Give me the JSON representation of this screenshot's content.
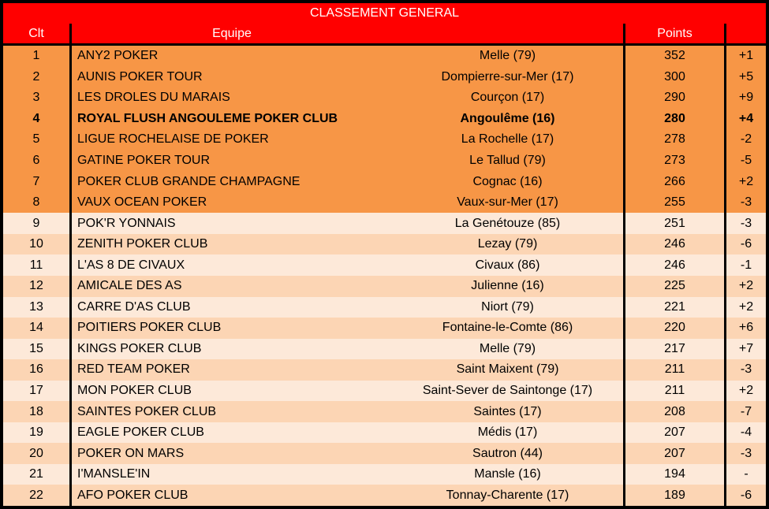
{
  "title": "CLASSEMENT GENERAL",
  "columns": {
    "rank": "Clt",
    "team": "Equipe",
    "points": "Points"
  },
  "colors": {
    "header-bg": "#FF0000",
    "header-text": "#FFFFFF",
    "row-top": "#F79646",
    "row-light": "#FDE9D9",
    "row-mid": "#FCD5B4",
    "border": "#000000",
    "body-text": "#000000"
  },
  "rows": [
    {
      "rank": "1",
      "team": "ANY2 POKER",
      "city": "Melle (79)",
      "points": "352",
      "change": "+1"
    },
    {
      "rank": "2",
      "team": "AUNIS POKER TOUR",
      "city": "Dompierre-sur-Mer (17)",
      "points": "300",
      "change": "+5"
    },
    {
      "rank": "3",
      "team": "LES DROLES DU MARAIS",
      "city": "Courçon (17)",
      "points": "290",
      "change": "+9"
    },
    {
      "rank": "4",
      "team": "ROYAL FLUSH ANGOULEME POKER CLUB",
      "city": "Angoulême (16)",
      "points": "280",
      "change": "+4",
      "highlight": true
    },
    {
      "rank": "5",
      "team": "LIGUE ROCHELAISE DE POKER",
      "city": "La Rochelle (17)",
      "points": "278",
      "change": "-2"
    },
    {
      "rank": "6",
      "team": "GATINE POKER TOUR",
      "city": "Le Tallud (79)",
      "points": "273",
      "change": "-5"
    },
    {
      "rank": "7",
      "team": "POKER CLUB GRANDE CHAMPAGNE",
      "city": "Cognac (16)",
      "points": "266",
      "change": "+2"
    },
    {
      "rank": "8",
      "team": "VAUX OCEAN POKER",
      "city": "Vaux-sur-Mer (17)",
      "points": "255",
      "change": "-3"
    },
    {
      "rank": "9",
      "team": "POK'R YONNAIS",
      "city": "La Genétouze (85)",
      "points": "251",
      "change": "-3"
    },
    {
      "rank": "10",
      "team": "ZENITH POKER CLUB",
      "city": "Lezay (79)",
      "points": "246",
      "change": "-6"
    },
    {
      "rank": "11",
      "team": "L'AS 8 DE CIVAUX",
      "city": "Civaux (86)",
      "points": "246",
      "change": "-1"
    },
    {
      "rank": "12",
      "team": "AMICALE DES AS",
      "city": "Julienne (16)",
      "points": "225",
      "change": "+2"
    },
    {
      "rank": "13",
      "team": "CARRE D'AS CLUB",
      "city": "Niort (79)",
      "points": "221",
      "change": "+2"
    },
    {
      "rank": "14",
      "team": "POITIERS POKER CLUB",
      "city": "Fontaine-le-Comte (86)",
      "points": "220",
      "change": "+6"
    },
    {
      "rank": "15",
      "team": "KINGS POKER CLUB",
      "city": "Melle (79)",
      "points": "217",
      "change": "+7"
    },
    {
      "rank": "16",
      "team": "RED TEAM POKER",
      "city": "Saint Maixent (79)",
      "points": "211",
      "change": "-3"
    },
    {
      "rank": "17",
      "team": "MON POKER CLUB",
      "city": "Saint-Sever de Saintonge (17)",
      "points": "211",
      "change": "+2"
    },
    {
      "rank": "18",
      "team": "SAINTES POKER CLUB",
      "city": "Saintes (17)",
      "points": "208",
      "change": "-7"
    },
    {
      "rank": "19",
      "team": "EAGLE POKER CLUB",
      "city": "Médis (17)",
      "points": "207",
      "change": "-4"
    },
    {
      "rank": "20",
      "team": "POKER ON MARS",
      "city": "Sautron (44)",
      "points": "207",
      "change": "-3"
    },
    {
      "rank": "21",
      "team": "I'MANSLE'IN",
      "city": "Mansle (16)",
      "points": "194",
      "change": "-"
    },
    {
      "rank": "22",
      "team": "AFO POKER CLUB",
      "city": "Tonnay-Charente (17)",
      "points": "189",
      "change": "-6"
    }
  ]
}
